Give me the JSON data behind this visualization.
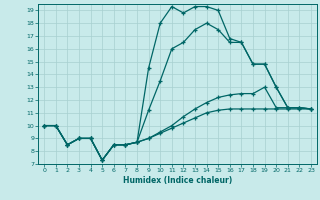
{
  "xlabel": "Humidex (Indice chaleur)",
  "ylabel": "",
  "xlim": [
    -0.5,
    23.5
  ],
  "ylim": [
    7,
    19.5
  ],
  "xticks": [
    0,
    1,
    2,
    3,
    4,
    5,
    6,
    7,
    8,
    9,
    10,
    11,
    12,
    13,
    14,
    15,
    16,
    17,
    18,
    19,
    20,
    21,
    22,
    23
  ],
  "yticks": [
    7,
    8,
    9,
    10,
    11,
    12,
    13,
    14,
    15,
    16,
    17,
    18,
    19
  ],
  "bg_color": "#c8eaea",
  "grid_color": "#a8d0d0",
  "line_color": "#006666",
  "lines": [
    {
      "x": [
        0,
        1,
        2,
        3,
        4,
        5,
        6,
        7,
        8,
        9,
        10,
        11,
        12,
        13,
        14,
        15,
        16,
        17,
        18,
        19,
        20,
        21,
        22,
        23
      ],
      "y": [
        10,
        10,
        8.5,
        9,
        9,
        7.3,
        8.5,
        8.5,
        8.7,
        14.5,
        18.0,
        19.3,
        18.8,
        19.3,
        19.3,
        19.0,
        16.8,
        16.5,
        14.8,
        14.8,
        13.0,
        11.4,
        11.4,
        11.3
      ]
    },
    {
      "x": [
        0,
        1,
        2,
        3,
        4,
        5,
        6,
        7,
        8,
        9,
        10,
        11,
        12,
        13,
        14,
        15,
        16,
        17,
        18,
        19,
        20,
        21,
        22,
        23
      ],
      "y": [
        10,
        10,
        8.5,
        9,
        9,
        7.3,
        8.5,
        8.5,
        8.7,
        11.2,
        13.5,
        16.0,
        16.5,
        17.5,
        18.0,
        17.5,
        16.5,
        16.5,
        14.8,
        14.8,
        13.0,
        11.4,
        11.4,
        11.3
      ]
    },
    {
      "x": [
        0,
        1,
        2,
        3,
        4,
        5,
        6,
        7,
        8,
        9,
        10,
        11,
        12,
        13,
        14,
        15,
        16,
        17,
        18,
        19,
        20,
        21,
        22,
        23
      ],
      "y": [
        10,
        10,
        8.5,
        9,
        9,
        7.3,
        8.5,
        8.5,
        8.7,
        9.0,
        9.5,
        10.0,
        10.7,
        11.3,
        11.8,
        12.2,
        12.4,
        12.5,
        12.5,
        13.0,
        11.4,
        11.4,
        11.4,
        11.3
      ]
    },
    {
      "x": [
        0,
        1,
        2,
        3,
        4,
        5,
        6,
        7,
        8,
        9,
        10,
        11,
        12,
        13,
        14,
        15,
        16,
        17,
        18,
        19,
        20,
        21,
        22,
        23
      ],
      "y": [
        10,
        10,
        8.5,
        9,
        9,
        7.3,
        8.5,
        8.5,
        8.7,
        9.0,
        9.4,
        9.8,
        10.2,
        10.6,
        11.0,
        11.2,
        11.3,
        11.3,
        11.3,
        11.3,
        11.3,
        11.3,
        11.3,
        11.3
      ]
    }
  ]
}
